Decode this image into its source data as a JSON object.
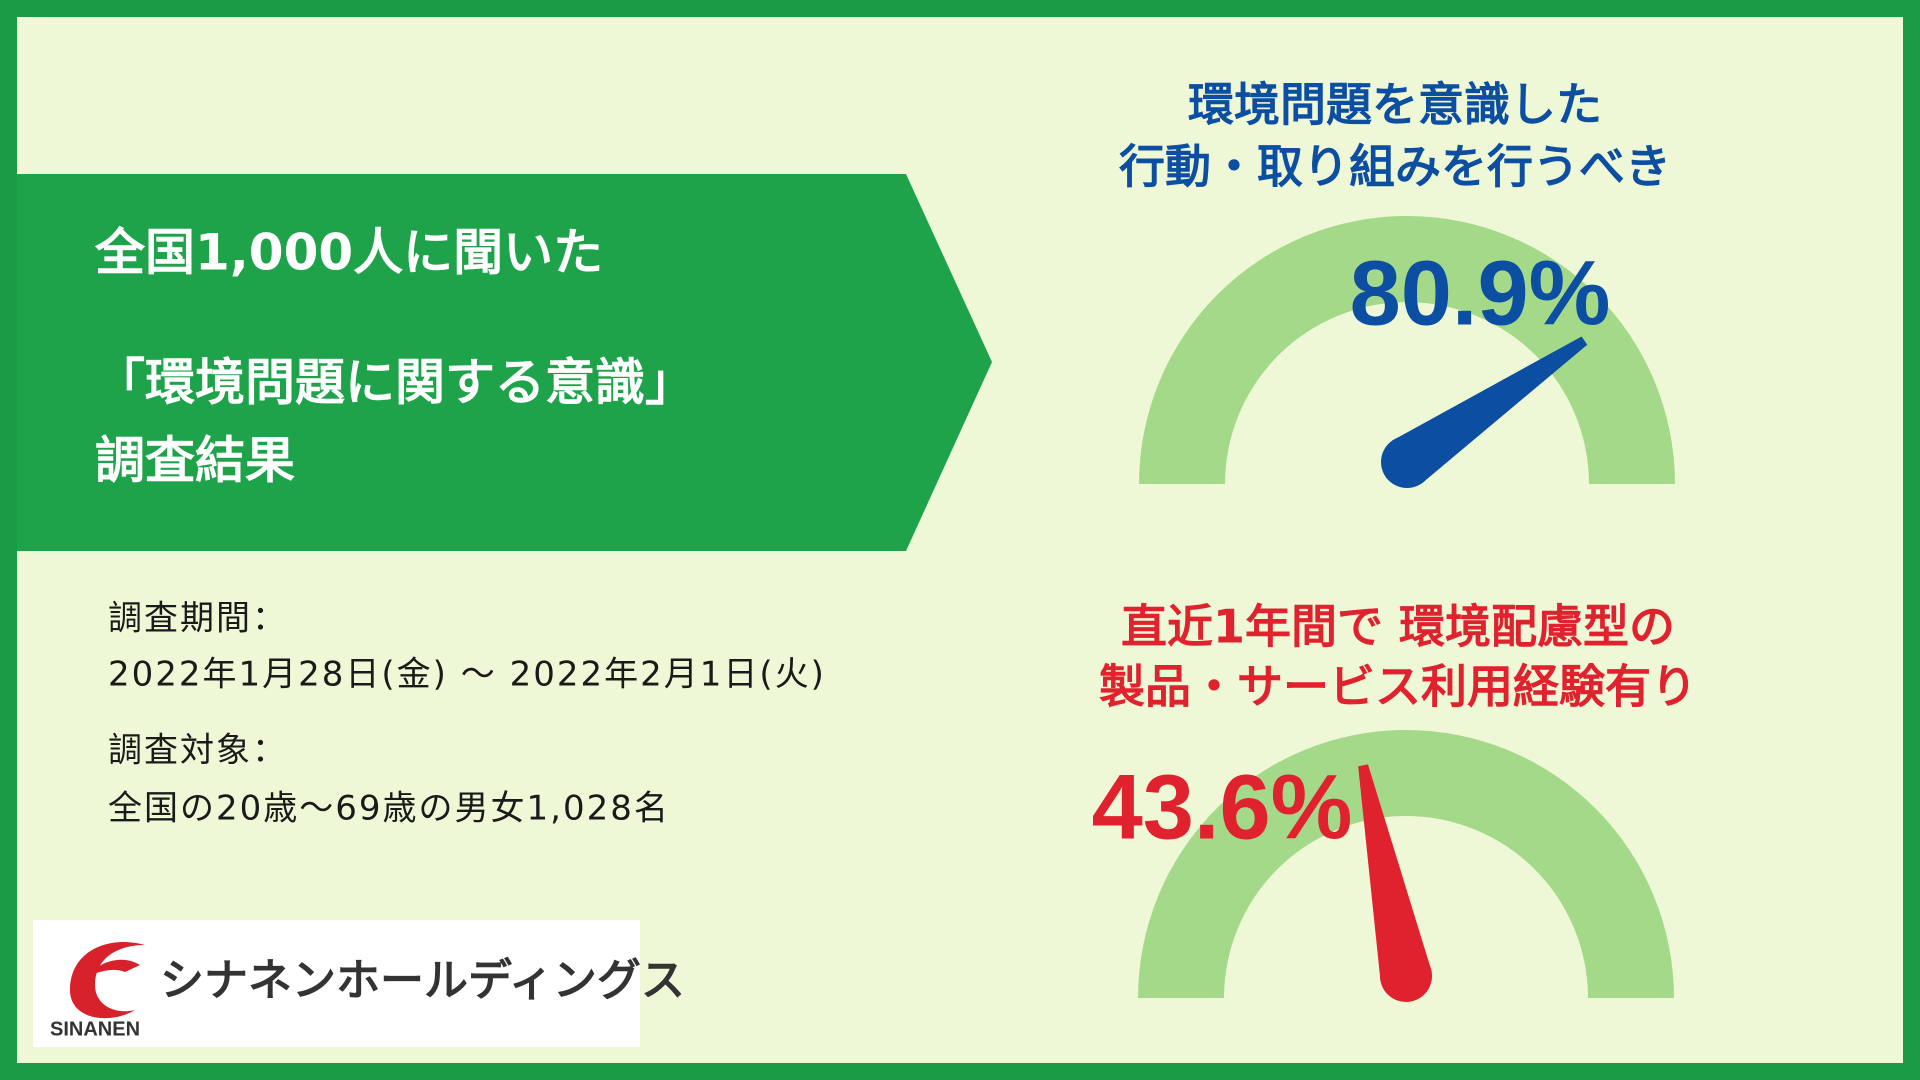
{
  "heading": {
    "line1": "全国1,000人に聞いた",
    "line2": "「環境問題に関する意識」",
    "line3": "調査結果"
  },
  "survey": {
    "period_label": "調査期間：",
    "period": "2022年1月28日(金) ～ 2022年2月1日(火)",
    "target_label": "調査対象：",
    "target": "全国の20歳〜69歳の男女1,028名"
  },
  "logo": {
    "name": "シナネンホールディングス",
    "brand": "SINANEN"
  },
  "chart_data": [
    {
      "type": "gauge",
      "title": [
        "環境問題を意識した",
        "行動・取り組みを行うべき"
      ],
      "values": [
        80.9
      ],
      "value_labels": [
        "80.9%"
      ],
      "color": "#0c4ea2",
      "ylim": [
        0,
        100
      ]
    },
    {
      "type": "gauge",
      "title": [
        "直近1年間で 環境配慮型の",
        "製品・サービス利用経験有り"
      ],
      "values": [
        43.6
      ],
      "value_labels": [
        "43.6%"
      ],
      "color": "#e0222f",
      "ylim": [
        0,
        100
      ]
    }
  ]
}
